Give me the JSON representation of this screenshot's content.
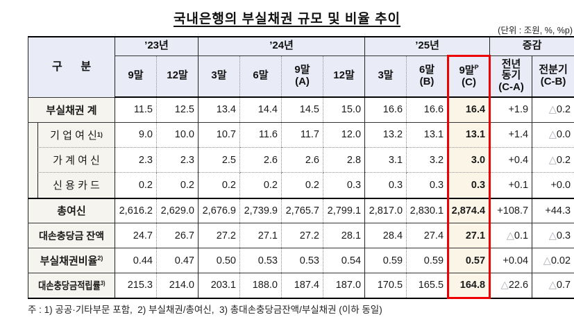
{
  "title": "국내은행의 부실채권 규모 및 비율 추이",
  "unit_note": "(단위 : 조원, %, %p)",
  "footnote": "주 : 1) 공공·기타부문 포함,  2) 부실채권/총여신,  3) 총대손충당금잔액/부실채권 (이하 동일)",
  "accent_colors": {
    "highlight_border": "#ee0000",
    "highlight_fill": "#faf5e6",
    "header_fill": "#e9ebf6",
    "label_fill": "#f5f4ee"
  },
  "table": {
    "category_label": "구      분",
    "groups": [
      {
        "label": "’23년"
      },
      {
        "label": "’24년"
      },
      {
        "label": "’25년"
      },
      {
        "label": "증감"
      }
    ],
    "cols": [
      {
        "l1": "9말"
      },
      {
        "l1": "12말"
      },
      {
        "l1": "3말"
      },
      {
        "l1": "6말"
      },
      {
        "l1": "9말",
        "l2": "(A)"
      },
      {
        "l1": "12말"
      },
      {
        "l1": "3말"
      },
      {
        "l1": "6말",
        "l2": "(B)"
      },
      {
        "l1": "9말",
        "sup": "P",
        "l2": "(C)"
      },
      {
        "l1": "전년",
        "l2": "동기",
        "l3": "(C-A)"
      },
      {
        "l1": "전분기",
        "l2": "(C-B)"
      }
    ],
    "rows": [
      {
        "label": "부실채권 계",
        "values": [
          "11.5",
          "12.5",
          "13.4",
          "14.4",
          "14.5",
          "15.0",
          "16.6",
          "16.6",
          "16.4",
          "+1.9",
          "△0.2"
        ]
      },
      {
        "label": "기 업 여 신",
        "sup": "1)",
        "values": [
          "9.0",
          "10.0",
          "10.7",
          "11.6",
          "11.7",
          "12.0",
          "13.2",
          "13.1",
          "13.1",
          "+1.4",
          "△0.0"
        ]
      },
      {
        "label": "가 계 여 신",
        "values": [
          "2.3",
          "2.3",
          "2.5",
          "2.6",
          "2.6",
          "2.8",
          "3.1",
          "3.2",
          "3.0",
          "+0.4",
          "△0.2"
        ]
      },
      {
        "label": "신 용 카 드",
        "values": [
          "0.2",
          "0.2",
          "0.2",
          "0.2",
          "0.2",
          "0.3",
          "0.3",
          "0.3",
          "0.3",
          "+0.1",
          "+0.0"
        ]
      },
      {
        "label": "총여신",
        "values": [
          "2,616.2",
          "2,629.0",
          "2,676.9",
          "2,739.9",
          "2,765.7",
          "2,799.1",
          "2,817.0",
          "2,830.1",
          "2,874.4",
          "+108.7",
          "+44.3"
        ]
      },
      {
        "label": "대손충당금 잔액",
        "values": [
          "24.7",
          "26.7",
          "27.2",
          "27.1",
          "27.2",
          "28.1",
          "28.4",
          "27.4",
          "27.1",
          "△0.1",
          "△0.3"
        ]
      },
      {
        "label": "부실채권비율",
        "sup": "2)",
        "values": [
          "0.44",
          "0.47",
          "0.50",
          "0.53",
          "0.53",
          "0.54",
          "0.59",
          "0.59",
          "0.57",
          "+0.04",
          "△0.02"
        ]
      },
      {
        "label": "대손충당금적립률",
        "sup": "3)",
        "values": [
          "215.3",
          "214.0",
          "203.1",
          "188.0",
          "187.4",
          "187.0",
          "170.5",
          "165.5",
          "164.8",
          "△22.6",
          "△0.7"
        ]
      }
    ]
  }
}
